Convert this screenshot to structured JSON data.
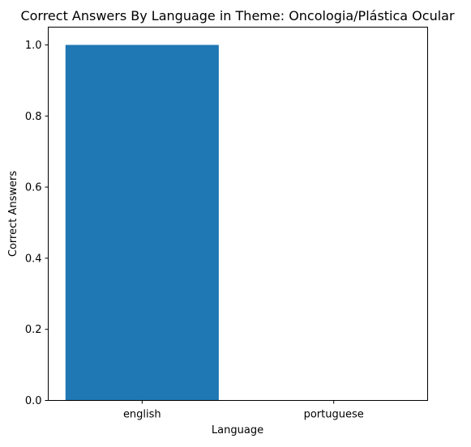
{
  "chart_data": {
    "type": "bar",
    "title": "Correct Answers By Language in Theme: Oncologia/Plástica Ocular",
    "xlabel": "Language",
    "ylabel": "Correct Answers",
    "categories": [
      "english",
      "portuguese"
    ],
    "values": [
      1.0,
      0.0
    ],
    "ylim": [
      0,
      1.05
    ],
    "yticks": [
      "0.0",
      "0.2",
      "0.4",
      "0.6",
      "0.8",
      "1.0"
    ],
    "grid": false,
    "bar_color": "#1f77b4"
  }
}
